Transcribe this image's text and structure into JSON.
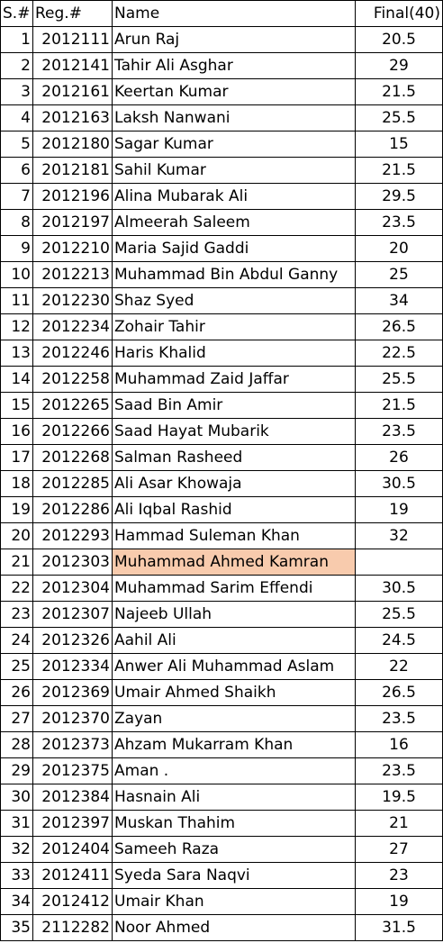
{
  "headers": {
    "sn": "S.#",
    "reg": "Reg.#",
    "name": "Name",
    "final": "Final(40)"
  },
  "highlight_color": "#f8cbad",
  "highlighted_row": 21,
  "rows": [
    {
      "sn": "1",
      "reg": "2012111",
      "name": "Arun Raj",
      "final": "20.5"
    },
    {
      "sn": "2",
      "reg": "2012141",
      "name": "Tahir Ali Asghar",
      "final": "29"
    },
    {
      "sn": "3",
      "reg": "2012161",
      "name": "Keertan Kumar",
      "final": "21.5"
    },
    {
      "sn": "4",
      "reg": "2012163",
      "name": "Laksh Nanwani",
      "final": "25.5"
    },
    {
      "sn": "5",
      "reg": "2012180",
      "name": "Sagar Kumar",
      "final": "15"
    },
    {
      "sn": "6",
      "reg": "2012181",
      "name": "Sahil Kumar",
      "final": "21.5"
    },
    {
      "sn": "7",
      "reg": "2012196",
      "name": "Alina Mubarak Ali",
      "final": "29.5"
    },
    {
      "sn": "8",
      "reg": "2012197",
      "name": "Almeerah Saleem",
      "final": "23.5"
    },
    {
      "sn": "9",
      "reg": "2012210",
      "name": "Maria Sajid Gaddi",
      "final": "20"
    },
    {
      "sn": "10",
      "reg": "2012213",
      "name": "Muhammad Bin Abdul Ganny",
      "final": "25"
    },
    {
      "sn": "11",
      "reg": "2012230",
      "name": "Shaz Syed",
      "final": "34"
    },
    {
      "sn": "12",
      "reg": "2012234",
      "name": "Zohair Tahir",
      "final": "26.5"
    },
    {
      "sn": "13",
      "reg": "2012246",
      "name": "Haris Khalid",
      "final": "22.5"
    },
    {
      "sn": "14",
      "reg": "2012258",
      "name": "Muhammad Zaid Jaffar",
      "final": "25.5"
    },
    {
      "sn": "15",
      "reg": "2012265",
      "name": "Saad Bin Amir",
      "final": "21.5"
    },
    {
      "sn": "16",
      "reg": "2012266",
      "name": "Saad Hayat Mubarik",
      "final": "23.5"
    },
    {
      "sn": "17",
      "reg": "2012268",
      "name": "Salman Rasheed",
      "final": "26"
    },
    {
      "sn": "18",
      "reg": "2012285",
      "name": "Ali Asar Khowaja",
      "final": "30.5"
    },
    {
      "sn": "19",
      "reg": "2012286",
      "name": "Ali Iqbal Rashid",
      "final": "19"
    },
    {
      "sn": "20",
      "reg": "2012293",
      "name": "Hammad Suleman Khan",
      "final": "32"
    },
    {
      "sn": "21",
      "reg": "2012303",
      "name": "Muhammad Ahmed Kamran",
      "final": ""
    },
    {
      "sn": "22",
      "reg": "2012304",
      "name": "Muhammad Sarim Effendi",
      "final": "30.5"
    },
    {
      "sn": "23",
      "reg": "2012307",
      "name": "Najeeb Ullah",
      "final": "25.5"
    },
    {
      "sn": "24",
      "reg": "2012326",
      "name": "Aahil Ali",
      "final": "24.5"
    },
    {
      "sn": "25",
      "reg": "2012334",
      "name": "Anwer Ali Muhammad Aslam",
      "final": "22"
    },
    {
      "sn": "26",
      "reg": "2012369",
      "name": "Umair Ahmed Shaikh",
      "final": "26.5"
    },
    {
      "sn": "27",
      "reg": "2012370",
      "name": "Zayan",
      "final": "23.5"
    },
    {
      "sn": "28",
      "reg": "2012373",
      "name": "Ahzam Mukarram Khan",
      "final": "16"
    },
    {
      "sn": "29",
      "reg": "2012375",
      "name": "Aman .",
      "final": "23.5"
    },
    {
      "sn": "30",
      "reg": "2012384",
      "name": "Hasnain Ali",
      "final": "19.5"
    },
    {
      "sn": "31",
      "reg": "2012397",
      "name": "Muskan Thahim",
      "final": "21"
    },
    {
      "sn": "32",
      "reg": "2012404",
      "name": "Sameeh Raza",
      "final": "27"
    },
    {
      "sn": "33",
      "reg": "2012411",
      "name": "Syeda Sara Naqvi",
      "final": "23"
    },
    {
      "sn": "34",
      "reg": "2012412",
      "name": "Umair Khan",
      "final": "19"
    },
    {
      "sn": "35",
      "reg": "2112282",
      "name": "Noor Ahmed",
      "final": "31.5"
    }
  ]
}
